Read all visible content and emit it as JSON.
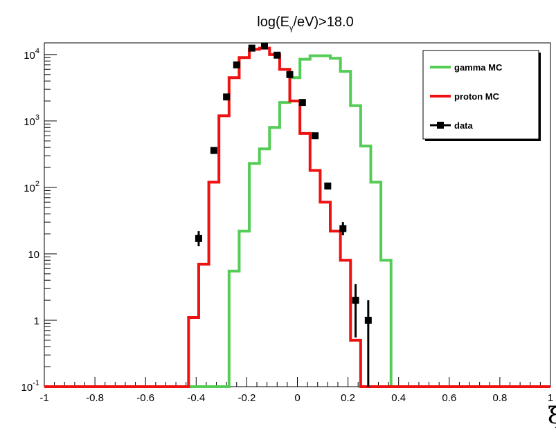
{
  "chart_data": {
    "type": "histogram",
    "title": {
      "main": "log(E",
      "sub": "γ",
      "rest": "/eV)>18.0"
    },
    "xlabel": "ξ",
    "ylabel": "",
    "xlim": [
      -1,
      1
    ],
    "ylim": [
      0.1,
      15000
    ],
    "yscale": "log",
    "grid": false,
    "legend_position": "top-right",
    "x_ticks": [
      {
        "value": -1,
        "label": "-1"
      },
      {
        "value": -0.8,
        "label": "-0.8"
      },
      {
        "value": -0.6,
        "label": "-0.6"
      },
      {
        "value": -0.4,
        "label": "-0.4"
      },
      {
        "value": -0.2,
        "label": "-0.2"
      },
      {
        "value": 0,
        "label": "0"
      },
      {
        "value": 0.2,
        "label": "0.2"
      },
      {
        "value": 0.4,
        "label": "0.4"
      },
      {
        "value": 0.6,
        "label": "0.6"
      },
      {
        "value": 0.8,
        "label": "0.8"
      },
      {
        "value": 1,
        "label": "1"
      }
    ],
    "y_ticks": [
      {
        "value": 0.1,
        "base": "10",
        "exp": "-1"
      },
      {
        "value": 1,
        "base": "1",
        "exp": ""
      },
      {
        "value": 10,
        "base": "10",
        "exp": ""
      },
      {
        "value": 100,
        "base": "10",
        "exp": "2"
      },
      {
        "value": 1000,
        "base": "10",
        "exp": "3"
      },
      {
        "value": 10000,
        "base": "10",
        "exp": "4"
      }
    ],
    "bin_width": 0.05,
    "series": [
      {
        "name": "gamma MC",
        "kind": "step",
        "color": "#55cc55",
        "bins": [
          {
            "x0": -0.3,
            "y": 0.1
          },
          {
            "x0": -0.25,
            "y": 22
          },
          {
            "x0": -0.2,
            "y": 230
          },
          {
            "x0": -0.15,
            "y": 380
          },
          {
            "x0": -0.1,
            "y": 800
          },
          {
            "x0": -0.05,
            "y": 1900
          },
          {
            "x0": 0.0,
            "y": 4500
          },
          {
            "x0": 0.05,
            "y": 8500
          },
          {
            "x0": 0.1,
            "y": 9600
          },
          {
            "x0": 0.15,
            "y": 8800
          },
          {
            "x0": 0.2,
            "y": 5600
          },
          {
            "x0": 0.25,
            "y": 1700
          },
          {
            "x0": 0.3,
            "y": 420
          },
          {
            "x0": 0.35,
            "y": 120
          },
          {
            "x0": 0.4,
            "y": 8
          },
          {
            "x0": 0.45,
            "y": 0.1
          }
        ],
        "special": {
          "first_step_from_axis": -0.27,
          "first_step_to": 5.5
        }
      },
      {
        "name": "proton MC",
        "kind": "step",
        "color": "#ee1111",
        "bins": [
          {
            "x0": -0.43,
            "y": 1.1
          },
          {
            "x0": -0.36,
            "y": 7
          },
          {
            "x0": -0.32,
            "y": 120
          },
          {
            "x0": -0.28,
            "y": 1200
          },
          {
            "x0": -0.24,
            "y": 4500
          },
          {
            "x0": -0.2,
            "y": 9000
          },
          {
            "x0": -0.16,
            "y": 12000
          },
          {
            "x0": -0.12,
            "y": 12500
          },
          {
            "x0": -0.08,
            "y": 10000
          },
          {
            "x0": -0.04,
            "y": 6000
          },
          {
            "x0": 0.0,
            "y": 2000
          },
          {
            "x0": 0.04,
            "y": 650
          },
          {
            "x0": 0.08,
            "y": 180
          },
          {
            "x0": 0.12,
            "y": 60
          },
          {
            "x0": 0.16,
            "y": 22
          },
          {
            "x0": 0.2,
            "y": 8
          },
          {
            "x0": 0.24,
            "y": 0.5
          },
          {
            "x0": 0.28,
            "y": 0.1
          }
        ]
      },
      {
        "name": "data",
        "kind": "points",
        "color": "#000000",
        "points": [
          {
            "x": -0.39,
            "y": 17,
            "lo": 13,
            "hi": 22
          },
          {
            "x": -0.33,
            "y": 360
          },
          {
            "x": -0.28,
            "y": 2300
          },
          {
            "x": -0.24,
            "y": 7000
          },
          {
            "x": -0.18,
            "y": 12500
          },
          {
            "x": -0.13,
            "y": 13500
          },
          {
            "x": -0.08,
            "y": 9800
          },
          {
            "x": -0.03,
            "y": 5000
          },
          {
            "x": 0.02,
            "y": 1900
          },
          {
            "x": 0.07,
            "y": 600
          },
          {
            "x": 0.12,
            "y": 105
          },
          {
            "x": 0.18,
            "y": 24,
            "lo": 19,
            "hi": 30
          },
          {
            "x": 0.23,
            "y": 2,
            "lo": 0.55,
            "hi": 3.5
          },
          {
            "x": 0.28,
            "y": 1,
            "lo": 0.1,
            "hi": 2
          }
        ]
      }
    ]
  },
  "legend": {
    "items": [
      {
        "label": "gamma MC",
        "color": "#55cc55"
      },
      {
        "label": "proton MC",
        "color": "#ee1111"
      },
      {
        "label": "data",
        "color": "#000000"
      }
    ]
  }
}
